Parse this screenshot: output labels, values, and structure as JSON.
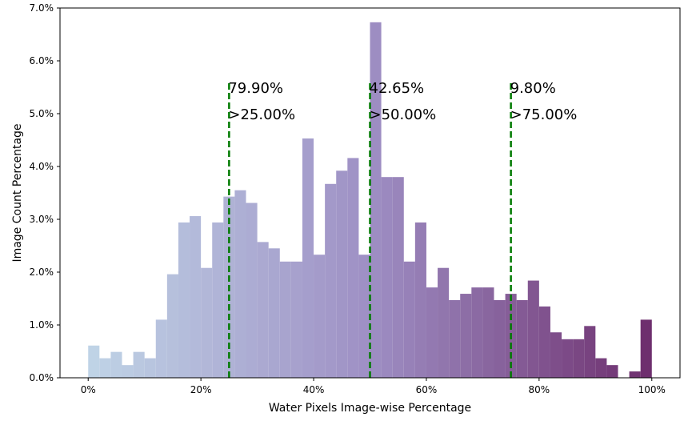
{
  "chart_data": {
    "type": "bar",
    "title": "",
    "xlabel": "Water Pixels Image-wise Percentage",
    "ylabel": "Image Count Percentage",
    "xlim": [
      -5,
      105
    ],
    "ylim": [
      0,
      7.0
    ],
    "x_ticks": [
      0,
      20,
      40,
      60,
      80,
      100
    ],
    "x_tick_labels": [
      "0%",
      "20%",
      "40%",
      "60%",
      "80%",
      "100%"
    ],
    "y_ticks": [
      0,
      1,
      2,
      3,
      4,
      5,
      6,
      7
    ],
    "y_tick_labels": [
      "0.0%",
      "1.0%",
      "2.0%",
      "3.0%",
      "4.0%",
      "5.0%",
      "6.0%",
      "7.0%"
    ],
    "grid": false,
    "legend": "none",
    "bin_width": 2,
    "bin_starts": [
      0,
      2,
      4,
      6,
      8,
      10,
      12,
      14,
      16,
      18,
      20,
      22,
      24,
      26,
      28,
      30,
      32,
      34,
      36,
      38,
      40,
      42,
      44,
      46,
      48,
      50,
      52,
      54,
      56,
      58,
      60,
      62,
      64,
      66,
      68,
      70,
      72,
      74,
      76,
      78,
      80,
      82,
      84,
      86,
      88,
      90,
      92,
      94,
      96,
      98
    ],
    "values": [
      0.61,
      0.37,
      0.49,
      0.24,
      0.49,
      0.37,
      1.1,
      1.96,
      2.94,
      3.06,
      2.08,
      2.94,
      3.43,
      3.55,
      3.31,
      2.57,
      2.45,
      2.2,
      2.2,
      4.53,
      2.33,
      3.67,
      3.92,
      4.16,
      2.33,
      6.73,
      3.8,
      3.8,
      2.2,
      2.94,
      1.71,
      2.08,
      1.47,
      1.59,
      1.71,
      1.71,
      1.47,
      1.59,
      1.47,
      1.84,
      1.35,
      0.86,
      0.73,
      0.73,
      0.98,
      0.37,
      0.24,
      0,
      0.12,
      1.1
    ],
    "color_start": "#bfd3e6",
    "color_mid": "#9e8fc4",
    "color_end": "#6e2f6e",
    "threshold_color": "#007a00",
    "thresholds": [
      {
        "x": 25,
        "value_label": "79.90%",
        "range_label": ">25.00%"
      },
      {
        "x": 50,
        "value_label": "42.65%",
        "range_label": ">50.00%"
      },
      {
        "x": 75,
        "value_label": "9.80%",
        "range_label": ">75.00%"
      }
    ],
    "threshold_line_top": 5.6
  }
}
